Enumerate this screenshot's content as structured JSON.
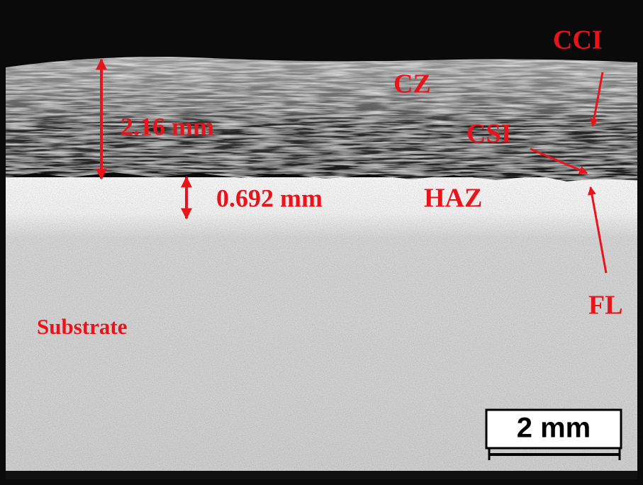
{
  "labels": {
    "cz": "CZ",
    "cci": "CCI",
    "csi": "CSI",
    "haz": "HAZ",
    "fl": "FL",
    "substrate": "Substrate",
    "clad_thickness": "2.16 mm",
    "haz_thickness": "0.692 mm"
  },
  "scale_bar": {
    "label": "2 mm"
  }
}
